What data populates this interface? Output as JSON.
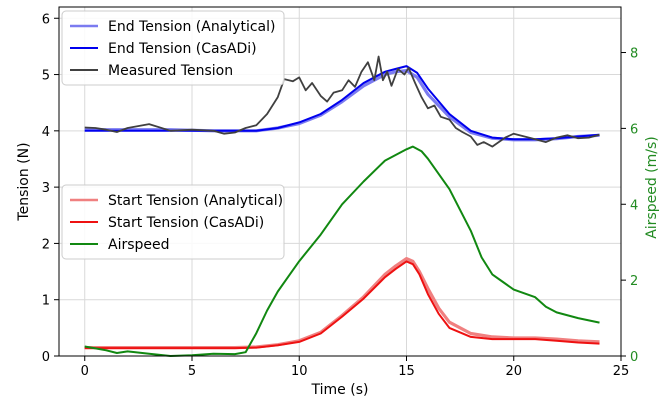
{
  "chart_data": {
    "type": "line",
    "xlabel": "Time (s)",
    "ylabel": "Tension (N)",
    "y2label": "Airspeed (m/s)",
    "xlim": [
      -1.2,
      25
    ],
    "ylim": [
      0,
      6.2
    ],
    "y2lim": [
      0,
      9.2
    ],
    "x_ticks": [
      "0",
      "5",
      "10",
      "15",
      "20",
      "25"
    ],
    "y_ticks": [
      "0",
      "1",
      "2",
      "3",
      "4",
      "5",
      "6"
    ],
    "y2_ticks": [
      "0",
      "2",
      "4",
      "6",
      "8"
    ],
    "grid": true,
    "legends": [
      {
        "placement": "top-left",
        "entries": [
          "End Tension (Analytical)",
          "End Tension (CasADi)",
          "Measured Tension"
        ]
      },
      {
        "placement": "center-left",
        "entries": [
          "Start Tension (Analytical)",
          "Start Tension (CasADi)",
          "Airspeed"
        ]
      }
    ],
    "colors": {
      "end_analytical": "#7b7bf0",
      "end_casadi": "#0000ee",
      "measured": "#404040",
      "start_analytical": "#f08080",
      "start_casadi": "#ee1111",
      "airspeed": "#118811"
    },
    "series": [
      {
        "name": "End Tension (Analytical)",
        "axis": "left",
        "x": [
          0,
          2,
          4,
          6,
          7,
          8,
          9,
          10,
          11,
          12,
          13,
          14,
          14.5,
          15,
          15.5,
          16,
          17,
          18,
          19,
          20,
          21,
          22,
          23,
          24
        ],
        "y": [
          4.02,
          4.02,
          4.02,
          4.0,
          4.0,
          4.0,
          4.05,
          4.13,
          4.28,
          4.52,
          4.8,
          5.0,
          5.05,
          5.07,
          4.95,
          4.65,
          4.25,
          3.97,
          3.87,
          3.84,
          3.84,
          3.86,
          3.9,
          3.92
        ]
      },
      {
        "name": "End Tension (CasADi)",
        "axis": "left",
        "x": [
          0,
          2,
          4,
          6,
          7,
          8,
          9,
          10,
          11,
          12,
          13,
          14,
          14.5,
          15,
          15.5,
          16,
          17,
          18,
          19,
          20,
          21,
          22,
          23,
          24
        ],
        "y": [
          4.0,
          4.0,
          4.0,
          4.0,
          4.0,
          4.0,
          4.05,
          4.15,
          4.3,
          4.55,
          4.85,
          5.05,
          5.1,
          5.15,
          5.03,
          4.75,
          4.3,
          4.0,
          3.88,
          3.85,
          3.85,
          3.87,
          3.9,
          3.93
        ]
      },
      {
        "name": "Measured Tension",
        "axis": "left",
        "x": [
          0,
          0.5,
          1,
          1.5,
          2,
          3,
          4,
          5,
          6,
          6.5,
          7,
          7.5,
          8,
          8.5,
          9,
          9.3,
          9.7,
          10,
          10.3,
          10.6,
          11,
          11.3,
          11.6,
          12,
          12.3,
          12.6,
          12.9,
          13.2,
          13.5,
          13.7,
          13.9,
          14.1,
          14.3,
          14.6,
          14.9,
          15.1,
          15.4,
          15.7,
          16,
          16.3,
          16.6,
          17,
          17.3,
          17.6,
          18,
          18.3,
          18.6,
          19,
          19.3,
          19.6,
          20,
          20.5,
          21,
          21.5,
          22,
          22.5,
          23,
          23.5,
          24
        ],
        "y": [
          4.06,
          4.05,
          4.02,
          3.98,
          4.05,
          4.12,
          4.0,
          4.02,
          4.0,
          3.95,
          3.97,
          4.05,
          4.1,
          4.3,
          4.6,
          4.92,
          4.88,
          4.95,
          4.72,
          4.85,
          4.62,
          4.52,
          4.68,
          4.72,
          4.9,
          4.78,
          5.05,
          5.22,
          4.9,
          5.32,
          4.9,
          5.05,
          4.8,
          5.1,
          5.0,
          5.12,
          4.85,
          4.6,
          4.4,
          4.45,
          4.25,
          4.2,
          4.05,
          3.98,
          3.9,
          3.75,
          3.8,
          3.72,
          3.8,
          3.88,
          3.95,
          3.9,
          3.85,
          3.8,
          3.88,
          3.92,
          3.87,
          3.88,
          3.93
        ]
      },
      {
        "name": "Start Tension (Analytical)",
        "axis": "left",
        "x": [
          0,
          2,
          4,
          6,
          7,
          8,
          9,
          10,
          11,
          12,
          13,
          14,
          14.5,
          15,
          15.3,
          15.6,
          16,
          16.5,
          17,
          18,
          19,
          20,
          21,
          22,
          23,
          24
        ],
        "y": [
          0.15,
          0.15,
          0.15,
          0.15,
          0.15,
          0.16,
          0.2,
          0.27,
          0.42,
          0.72,
          1.05,
          1.45,
          1.6,
          1.73,
          1.68,
          1.5,
          1.2,
          0.85,
          0.6,
          0.4,
          0.34,
          0.32,
          0.32,
          0.3,
          0.27,
          0.25
        ]
      },
      {
        "name": "Start Tension (CasADi)",
        "axis": "left",
        "x": [
          0,
          2,
          4,
          6,
          7,
          8,
          9,
          10,
          11,
          12,
          13,
          14,
          14.5,
          15,
          15.3,
          15.6,
          16,
          16.5,
          17,
          18,
          19,
          20,
          21,
          22,
          23,
          24
        ],
        "y": [
          0.14,
          0.14,
          0.14,
          0.14,
          0.14,
          0.15,
          0.19,
          0.25,
          0.4,
          0.7,
          1.02,
          1.4,
          1.55,
          1.68,
          1.63,
          1.45,
          1.1,
          0.75,
          0.5,
          0.34,
          0.3,
          0.3,
          0.3,
          0.27,
          0.24,
          0.22
        ]
      },
      {
        "name": "Airspeed",
        "axis": "right",
        "x": [
          0,
          0.5,
          1,
          1.5,
          2,
          3,
          4,
          5,
          6,
          7,
          7.5,
          8,
          8.5,
          9,
          9.5,
          10,
          11,
          12,
          13,
          14,
          15,
          15.3,
          15.7,
          16,
          17,
          18,
          18.5,
          19,
          19.5,
          20,
          21,
          21.5,
          22,
          23,
          24
        ],
        "y": [
          0.25,
          0.2,
          0.15,
          0.08,
          0.12,
          0.06,
          0.0,
          0.02,
          0.06,
          0.05,
          0.1,
          0.6,
          1.2,
          1.7,
          2.1,
          2.5,
          3.2,
          4.0,
          4.6,
          5.15,
          5.45,
          5.52,
          5.4,
          5.2,
          4.4,
          3.3,
          2.6,
          2.15,
          1.95,
          1.75,
          1.55,
          1.3,
          1.15,
          1.0,
          0.88
        ]
      }
    ]
  }
}
